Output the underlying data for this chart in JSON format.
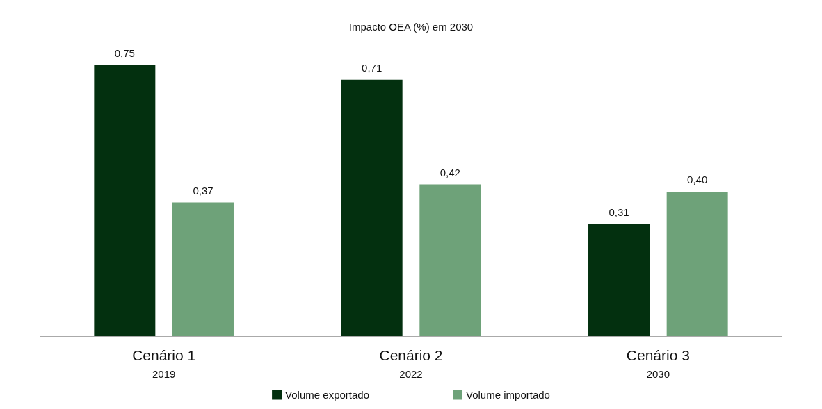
{
  "chart_data": {
    "type": "bar",
    "title": "Impacto OEA (%) em 2030",
    "categories": [
      "Cenário 1\n2019",
      "Cenário 2\n2022",
      "Cenário 3\n2030"
    ],
    "series": [
      {
        "name": "Volume exportado",
        "color": "#03300f",
        "values": [
          0.75,
          0.71,
          0.31
        ],
        "value_labels": [
          "0,75",
          "0,71",
          "0,31"
        ]
      },
      {
        "name": "Volume importado",
        "color": "#6ea279",
        "values": [
          0.37,
          0.42,
          0.4
        ],
        "value_labels": [
          "0,37",
          "0,42",
          "0,40"
        ]
      }
    ],
    "grid": false,
    "legend": "bottom"
  }
}
